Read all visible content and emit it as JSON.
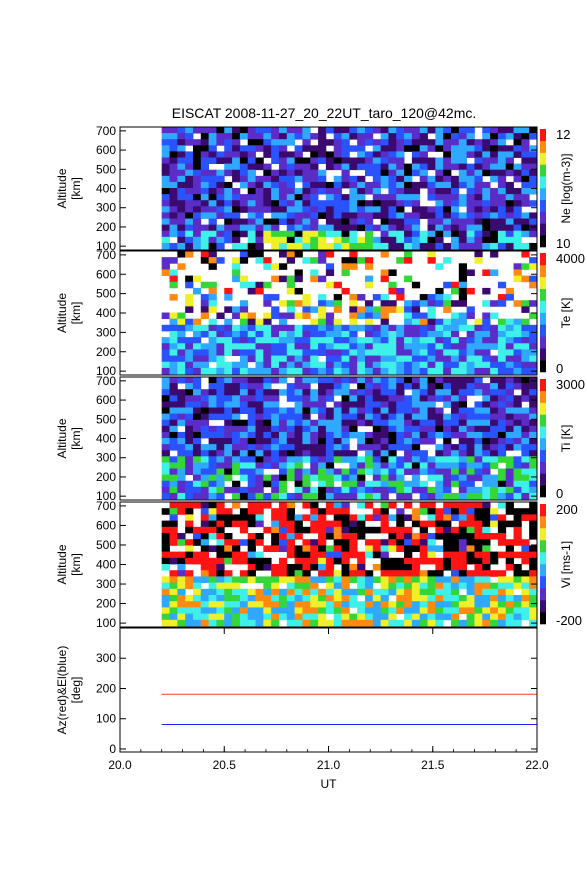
{
  "title": "EISCAT 2008-11-27_20_22UT_taro_120@42mc.",
  "colors": {
    "background": "#ffffff",
    "axis": "#000000",
    "az_line": "#ff3b1f",
    "el_line": "#1f1fff",
    "colormap": [
      "#000000",
      "#3a0a6e",
      "#5a2cc8",
      "#2a52ff",
      "#2fa8ff",
      "#3ff0e8",
      "#35d63a",
      "#f0f02a",
      "#ff8a12",
      "#ff1414"
    ]
  },
  "chart_data": [
    {
      "type": "heatmap",
      "panel": "ne",
      "ylabel": [
        "Altitude",
        "[km]"
      ],
      "yticks": [
        "700",
        "600",
        "500",
        "400",
        "300",
        "200",
        "100"
      ],
      "ylim": [
        80,
        720
      ],
      "xlim": [
        20.0,
        22.0
      ],
      "data_x_range": [
        20.2,
        22.0
      ],
      "colorbar": {
        "label": "Ne [log(m-3)]",
        "max_label": "12",
        "min_label": "10",
        "range": [
          10,
          12
        ]
      }
    },
    {
      "type": "heatmap",
      "panel": "te",
      "ylabel": [
        "Altitude",
        "[km]"
      ],
      "yticks": [
        "700",
        "600",
        "500",
        "400",
        "300",
        "200",
        "100"
      ],
      "ylim": [
        80,
        720
      ],
      "xlim": [
        20.0,
        22.0
      ],
      "data_x_range": [
        20.2,
        22.0
      ],
      "colorbar": {
        "label": "Te [K]",
        "max_label": "4000",
        "min_label": "0",
        "range": [
          0,
          4000
        ]
      }
    },
    {
      "type": "heatmap",
      "panel": "ti",
      "ylabel": [
        "Altitude",
        "[km]"
      ],
      "yticks": [
        "700",
        "600",
        "500",
        "400",
        "300",
        "200",
        "100"
      ],
      "ylim": [
        80,
        720
      ],
      "xlim": [
        20.0,
        22.0
      ],
      "data_x_range": [
        20.2,
        22.0
      ],
      "colorbar": {
        "label": "Ti [K]",
        "max_label": "3000",
        "min_label": "0",
        "range": [
          0,
          3000
        ]
      }
    },
    {
      "type": "heatmap",
      "panel": "vi",
      "ylabel": [
        "Altitude",
        "[km]"
      ],
      "yticks": [
        "700",
        "600",
        "500",
        "400",
        "300",
        "200",
        "100"
      ],
      "ylim": [
        80,
        720
      ],
      "xlim": [
        20.0,
        22.0
      ],
      "data_x_range": [
        20.2,
        22.0
      ],
      "colorbar": {
        "label": "Vi [ms-1]",
        "max_label": "200",
        "min_label": "-200",
        "range": [
          -200,
          200
        ]
      }
    },
    {
      "type": "line",
      "panel": "azel",
      "ylabel": [
        "Az(red)&El(blue)",
        "[deg]"
      ],
      "yticks": [
        "300",
        "200",
        "100",
        "0"
      ],
      "ylim": [
        -10,
        400
      ],
      "xlim": [
        20.0,
        22.0
      ],
      "xlabel": "UT",
      "xticks": [
        "20.0",
        "20.5",
        "21.0",
        "21.5",
        "22.0"
      ],
      "series": [
        {
          "name": "Az(red)",
          "x": [
            20.2,
            22.0
          ],
          "y": [
            181,
            181
          ]
        },
        {
          "name": "El(blue)",
          "x": [
            20.2,
            22.0
          ],
          "y": [
            81,
            81
          ]
        }
      ]
    }
  ]
}
